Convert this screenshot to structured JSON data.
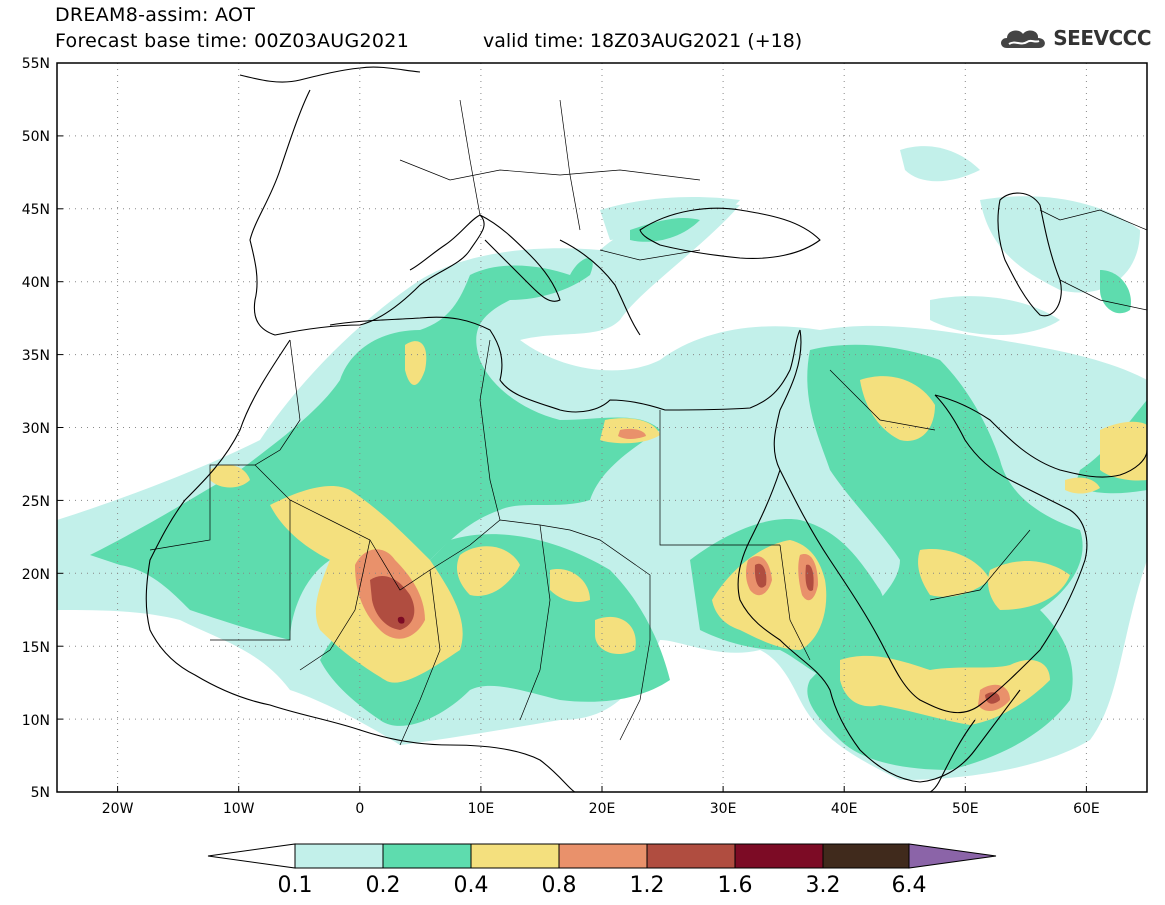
{
  "header": {
    "title": "DREAM8-assim: AOT",
    "base_time": "Forecast base time: 00Z03AUG2021",
    "valid_time": "valid time: 18Z03AUG2021 (+18)"
  },
  "logo": {
    "text": "SEEVCCC",
    "icon": "cloud-icon"
  },
  "map": {
    "lon_range": [
      -25,
      65
    ],
    "lat_range": [
      5,
      55
    ],
    "lon_ticks": [
      "20W",
      "10W",
      "0",
      "10E",
      "20E",
      "30E",
      "40E",
      "50E",
      "60E"
    ],
    "lat_ticks": [
      "55N",
      "50N",
      "45N",
      "40N",
      "35N",
      "30N",
      "25N",
      "20N",
      "15N",
      "10N",
      "5N"
    ]
  },
  "colorbar": {
    "labels": [
      "0.1",
      "0.2",
      "0.4",
      "0.8",
      "1.2",
      "1.6",
      "3.2",
      "6.4"
    ],
    "colors": [
      "#ffffff",
      "#c2f0ea",
      "#5edcae",
      "#f4e07e",
      "#e9916b",
      "#b04d40",
      "#7c0b25",
      "#402a1c",
      "#8b64a8"
    ]
  }
}
